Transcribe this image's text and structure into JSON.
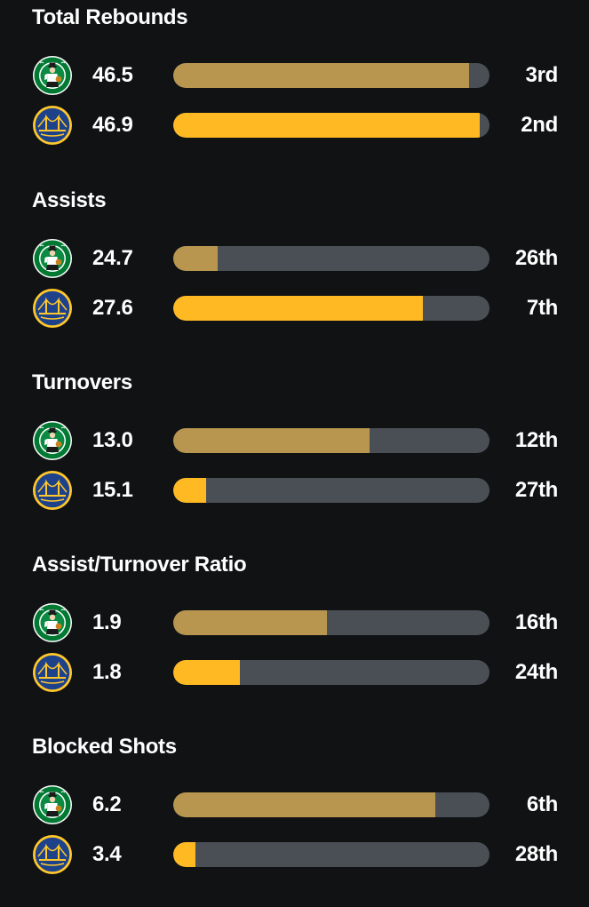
{
  "colors": {
    "background": "#101214",
    "track": "#4a4f55",
    "celtics_bar": "#b89650",
    "warriors_bar": "#ffb923"
  },
  "teams": {
    "celtics": {
      "logo_icon": "boston-celtics-logo-icon"
    },
    "warriors": {
      "logo_icon": "golden-state-warriors-logo-icon"
    }
  },
  "stats": [
    {
      "title": "Total Rebounds",
      "celtics": {
        "value": "46.5",
        "rank": "3rd",
        "fill_fraction": 0.935
      },
      "warriors": {
        "value": "46.9",
        "rank": "2nd",
        "fill_fraction": 0.97
      }
    },
    {
      "title": "Assists",
      "celtics": {
        "value": "24.7",
        "rank": "26th",
        "fill_fraction": 0.14
      },
      "warriors": {
        "value": "27.6",
        "rank": "7th",
        "fill_fraction": 0.79
      }
    },
    {
      "title": "Turnovers",
      "celtics": {
        "value": "13.0",
        "rank": "12th",
        "fill_fraction": 0.62
      },
      "warriors": {
        "value": "15.1",
        "rank": "27th",
        "fill_fraction": 0.105
      }
    },
    {
      "title": "Assist/Turnover Ratio",
      "celtics": {
        "value": "1.9",
        "rank": "16th",
        "fill_fraction": 0.485
      },
      "warriors": {
        "value": "1.8",
        "rank": "24th",
        "fill_fraction": 0.21
      }
    },
    {
      "title": "Blocked Shots",
      "celtics": {
        "value": "6.2",
        "rank": "6th",
        "fill_fraction": 0.83
      },
      "warriors": {
        "value": "3.4",
        "rank": "28th",
        "fill_fraction": 0.07
      }
    }
  ]
}
